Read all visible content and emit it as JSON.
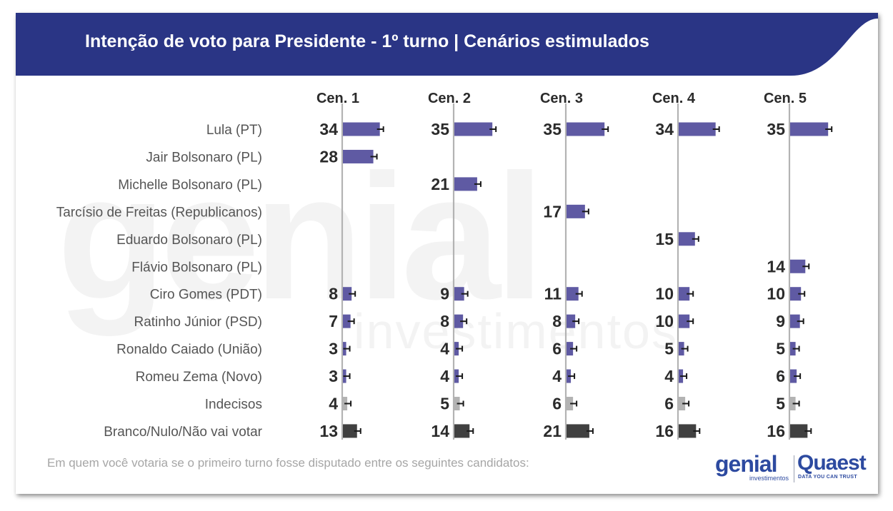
{
  "header": {
    "title": "Intenção de voto para Presidente - 1º turno | Cenários estimulados"
  },
  "watermark": {
    "word": "genial",
    "sub": "investimentos"
  },
  "footnote": "Em quem você votaria se o primeiro turno fosse disputado entre os seguintes candidatos:",
  "logos": {
    "genial": {
      "name": "genial",
      "sub": "investimentos"
    },
    "quaest": {
      "name": "Quaest",
      "tagline": "DATA YOU CAN TRUST"
    }
  },
  "colors": {
    "banner": "#2a3585",
    "candidate_bar": "#5f5aa3",
    "undecided_bar": "#b3b3b3",
    "blank_bar": "#404040",
    "axis_line": "#b3b3b3"
  },
  "chart_data": {
    "type": "bar",
    "orientation": "horizontal",
    "scenarios": [
      "Cen. 1",
      "Cen. 2",
      "Cen. 3",
      "Cen. 4",
      "Cen. 5"
    ],
    "categories": [
      "Lula (PT)",
      "Jair Bolsonaro (PL)",
      "Michelle Bolsonaro (PL)",
      "Tarcísio de Freitas (Republicanos)",
      "Eduardo Bolsonaro (PL)",
      "Flávio Bolsonaro (PL)",
      "Ciro Gomes (PDT)",
      "Ratinho Júnior (PSD)",
      "Ronaldo Caiado (União)",
      "Romeu Zema (Novo)",
      "Indecisos",
      "Branco/Nulo/Não vai votar"
    ],
    "category_kind": [
      "candidate",
      "candidate",
      "candidate",
      "candidate",
      "candidate",
      "candidate",
      "candidate",
      "candidate",
      "candidate",
      "candidate",
      "undecided",
      "blank"
    ],
    "series": [
      {
        "name": "Cen. 1",
        "values": [
          34,
          28,
          null,
          null,
          null,
          null,
          8,
          7,
          3,
          3,
          4,
          13
        ]
      },
      {
        "name": "Cen. 2",
        "values": [
          35,
          null,
          21,
          null,
          null,
          null,
          9,
          8,
          4,
          4,
          5,
          14
        ]
      },
      {
        "name": "Cen. 3",
        "values": [
          35,
          null,
          null,
          17,
          null,
          null,
          11,
          8,
          6,
          4,
          6,
          21
        ]
      },
      {
        "name": "Cen. 4",
        "values": [
          34,
          null,
          null,
          null,
          15,
          null,
          10,
          10,
          5,
          4,
          6,
          16
        ]
      },
      {
        "name": "Cen. 5",
        "values": [
          35,
          null,
          null,
          null,
          null,
          14,
          10,
          9,
          5,
          6,
          5,
          16
        ]
      }
    ],
    "unit": "%",
    "error_bars": true,
    "legend": "none",
    "grid": false
  }
}
